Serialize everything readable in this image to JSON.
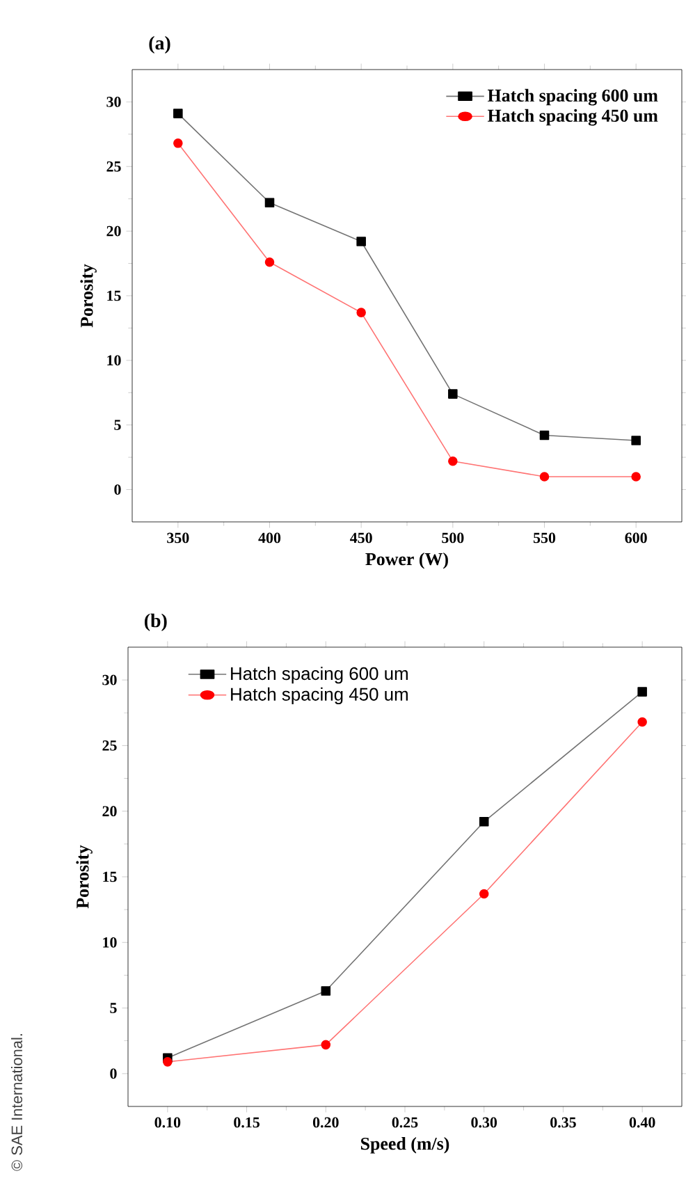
{
  "chart_data": [
    {
      "type": "line",
      "title": "(a)",
      "xlabel": "Power (W)",
      "ylabel": "Porosity",
      "x": [
        350,
        400,
        450,
        500,
        550,
        600
      ],
      "series": [
        {
          "name": "Hatch spacing 600 um",
          "color": "#000000",
          "marker": "square",
          "values": [
            29.1,
            22.2,
            19.2,
            7.4,
            4.2,
            3.8
          ]
        },
        {
          "name": "Hatch spacing 450 um",
          "color": "#ff0000",
          "marker": "circle",
          "values": [
            26.8,
            17.6,
            13.7,
            2.2,
            1.0,
            1.0
          ]
        }
      ],
      "xlim": [
        325,
        625
      ],
      "xticks": [
        350,
        400,
        450,
        500,
        550,
        600
      ],
      "ylim": [
        -2.5,
        32.5
      ],
      "yticks": [
        0,
        5,
        10,
        15,
        20,
        25,
        30
      ],
      "legend": "top right",
      "line_style": "solid",
      "grid": false
    },
    {
      "type": "line",
      "title": "(b)",
      "xlabel": "Speed (m/s)",
      "ylabel": "Porosity",
      "x": [
        0.1,
        0.2,
        0.3,
        0.4
      ],
      "series": [
        {
          "name": "Hatch spacing 600 um",
          "color": "#000000",
          "marker": "square",
          "values": [
            1.2,
            6.3,
            19.2,
            29.1
          ]
        },
        {
          "name": "Hatch spacing 450 um",
          "color": "#ff0000",
          "marker": "circle",
          "values": [
            0.9,
            2.2,
            13.7,
            26.8
          ]
        }
      ],
      "xlim": [
        0.075,
        0.425
      ],
      "xticks": [
        {
          "value": 0.1,
          "label": "0.10"
        },
        {
          "value": 0.15,
          "label": "0.15"
        },
        {
          "value": 0.2,
          "label": "0.20"
        },
        {
          "value": 0.25,
          "label": "0.25"
        },
        {
          "value": 0.3,
          "label": "0.30"
        },
        {
          "value": 0.35,
          "label": "0.35"
        },
        {
          "value": 0.4,
          "label": "0.40"
        }
      ],
      "ylim": [
        -2.5,
        32.5
      ],
      "yticks": [
        0,
        5,
        10,
        15,
        20,
        25,
        30
      ],
      "legend": "top left",
      "line_style": "solid",
      "grid": false,
      "annotations": [
        "© SAE International."
      ]
    }
  ]
}
